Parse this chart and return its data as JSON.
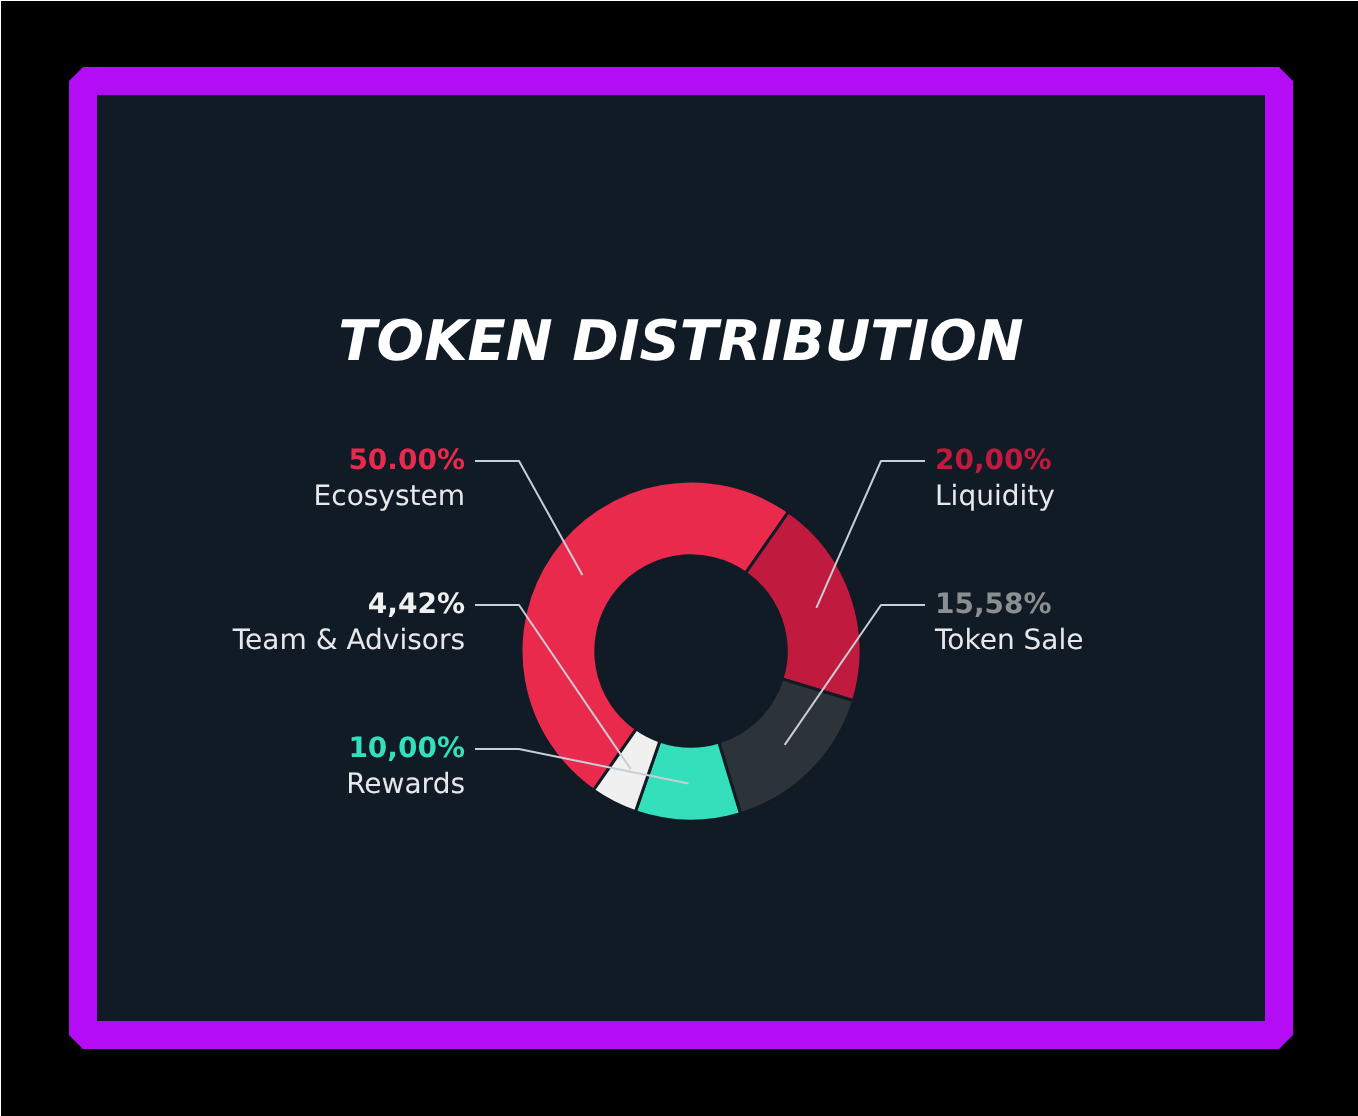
{
  "chart_data": {
    "type": "donut",
    "title": "TOKEN DISTRIBUTION",
    "categories": [
      "Ecosystem",
      "Liquidity",
      "Token Sale",
      "Rewards",
      "Team & Advisors"
    ],
    "values": [
      50,
      20,
      15.58,
      10,
      4.42
    ],
    "colors": [
      "#ea2a4d",
      "#c01a3e",
      "#2c3439",
      "#33e0bb",
      "#f0f0f0"
    ],
    "value_labels": [
      "50.00%",
      "20,00%",
      "15,58%",
      "10,00%",
      "4,42%"
    ]
  }
}
